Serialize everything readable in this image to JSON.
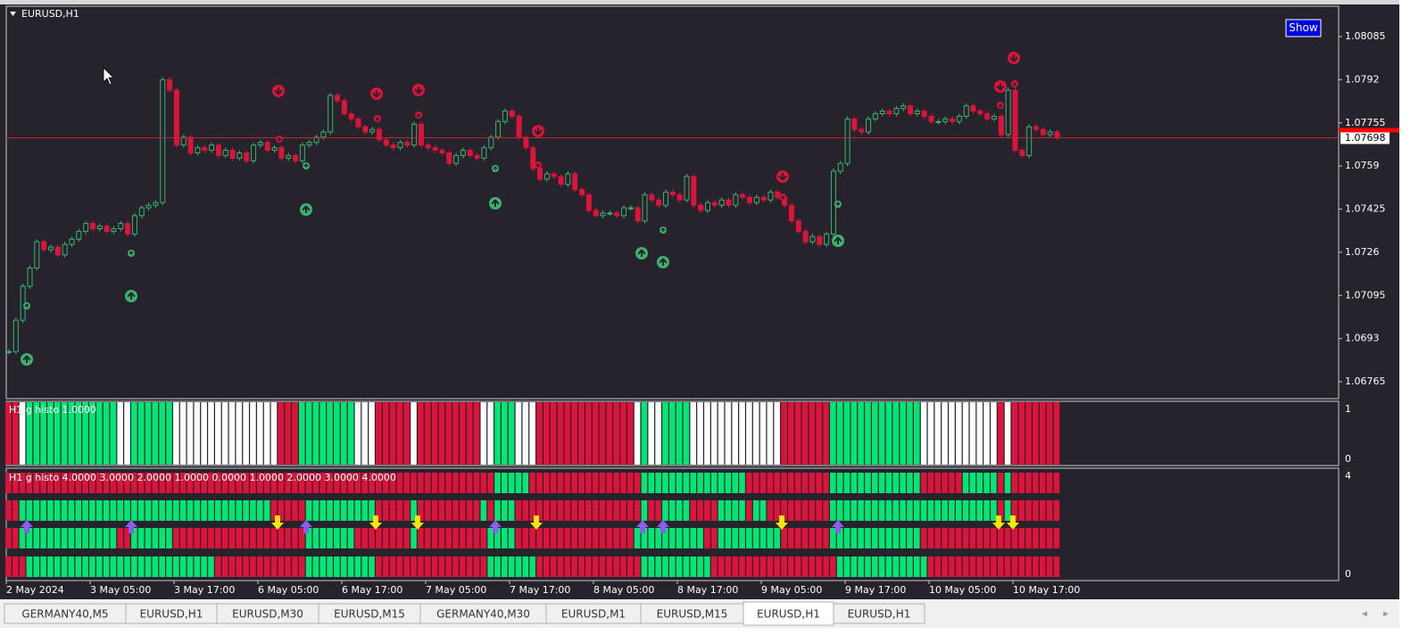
{
  "window": {
    "title": "EURUSD,H1",
    "show_button": "Show"
  },
  "price_axis": {
    "ticks": [
      1.08085,
      1.0792,
      1.07755,
      1.0759,
      1.07425,
      1.0726,
      1.07095,
      1.0693,
      1.06765
    ],
    "current_price": 1.07698
  },
  "candles": {
    "closes": [
      1.0688,
      1.07,
      1.0713,
      1.072,
      1.073,
      1.0727,
      1.0728,
      1.0725,
      1.0729,
      1.0731,
      1.0734,
      1.0737,
      1.0735,
      1.0736,
      1.0734,
      1.0735,
      1.0737,
      1.0733,
      1.074,
      1.0743,
      1.0744,
      1.0745,
      1.0792,
      1.0788,
      1.0767,
      1.077,
      1.0764,
      1.0766,
      1.0765,
      1.0767,
      1.0763,
      1.0765,
      1.0762,
      1.0764,
      1.0761,
      1.0767,
      1.0768,
      1.0765,
      1.0766,
      1.0762,
      1.0763,
      1.0761,
      1.0767,
      1.0768,
      1.077,
      1.0772,
      1.0786,
      1.0784,
      1.0779,
      1.0777,
      1.0774,
      1.0772,
      1.0773,
      1.0769,
      1.0767,
      1.0766,
      1.0768,
      1.0767,
      1.0775,
      1.0767,
      1.0766,
      1.0765,
      1.0764,
      1.076,
      1.0763,
      1.0765,
      1.0763,
      1.0762,
      1.0766,
      1.077,
      1.0776,
      1.078,
      1.0778,
      1.077,
      1.0766,
      1.0758,
      1.0754,
      1.0756,
      1.0755,
      1.0752,
      1.0756,
      1.075,
      1.0748,
      1.0742,
      1.074,
      1.0741,
      1.0741,
      1.074,
      1.0743,
      1.0743,
      1.0738,
      1.0748,
      1.0746,
      1.0744,
      1.0749,
      1.0748,
      1.0746,
      1.0755,
      1.0744,
      1.0742,
      1.0745,
      1.0744,
      1.0746,
      1.0744,
      1.0748,
      1.0747,
      1.0745,
      1.0747,
      1.0746,
      1.0749,
      1.0747,
      1.0744,
      1.0738,
      1.0734,
      1.073,
      1.0732,
      1.0729,
      1.0733,
      1.0757,
      1.076,
      1.0777,
      1.0773,
      1.0772,
      1.0777,
      1.0779,
      1.078,
      1.0779,
      1.0781,
      1.0782,
      1.0779,
      1.078,
      1.0778,
      1.0776,
      1.0776,
      1.0777,
      1.0776,
      1.0778,
      1.0782,
      1.078,
      1.0779,
      1.0777,
      1.0778,
      1.0771,
      1.0788,
      1.0765,
      1.0763,
      1.0774,
      1.0773,
      1.0771,
      1.0772,
      1.077
    ]
  },
  "palette": {
    "r": "#dc143c",
    "g": "#00e676",
    "w": "#ffffff"
  },
  "histo_top": {
    "label": "H1 g histo  1.0000",
    "axis": [
      1,
      0
    ],
    "runs": [
      [
        "r",
        2
      ],
      [
        "w",
        1
      ],
      [
        "g",
        13
      ],
      [
        "w",
        2
      ],
      [
        "g",
        6
      ],
      [
        "w",
        15
      ],
      [
        "r",
        3
      ],
      [
        "g",
        8
      ],
      [
        "w",
        3
      ],
      [
        "r",
        5
      ],
      [
        "w",
        1
      ],
      [
        "r",
        9
      ],
      [
        "w",
        2
      ],
      [
        "g",
        3
      ],
      [
        "w",
        3
      ],
      [
        "r",
        14
      ],
      [
        "w",
        1
      ],
      [
        "g",
        1
      ],
      [
        "w",
        2
      ],
      [
        "g",
        4
      ],
      [
        "w",
        13
      ],
      [
        "r",
        7
      ],
      [
        "g",
        13
      ],
      [
        "w",
        11
      ],
      [
        "r",
        1
      ],
      [
        "w",
        1
      ],
      [
        "r",
        7
      ]
    ]
  },
  "histo_rows": {
    "label": "H1 g histo  4.0000 3.0000 2.0000 1.0000 0.0000 1.0000 2.0000 3.0000 4.0000",
    "axis": [
      4,
      0
    ],
    "rows": [
      [
        [
          "r",
          70
        ],
        [
          "g",
          5
        ],
        [
          "r",
          16
        ],
        [
          "g",
          15
        ],
        [
          "r",
          12
        ],
        [
          "g",
          13
        ],
        [
          "r",
          6
        ],
        [
          "g",
          5
        ],
        [
          "r",
          1
        ],
        [
          "g",
          1
        ],
        [
          "r",
          7
        ]
      ],
      [
        [
          "r",
          2
        ],
        [
          "g",
          36
        ],
        [
          "r",
          5
        ],
        [
          "g",
          10
        ],
        [
          "r",
          5
        ],
        [
          "g",
          1
        ],
        [
          "r",
          9
        ],
        [
          "g",
          1
        ],
        [
          "r",
          1
        ],
        [
          "g",
          3
        ],
        [
          "r",
          18
        ],
        [
          "g",
          1
        ],
        [
          "r",
          2
        ],
        [
          "g",
          4
        ],
        [
          "r",
          4
        ],
        [
          "g",
          4
        ],
        [
          "r",
          1
        ],
        [
          "g",
          2
        ],
        [
          "r",
          9
        ],
        [
          "g",
          24
        ],
        [
          "r",
          1
        ],
        [
          "g",
          1
        ],
        [
          "r",
          7
        ]
      ],
      [
        [
          "r",
          2
        ],
        [
          "g",
          14
        ],
        [
          "r",
          2
        ],
        [
          "g",
          6
        ],
        [
          "r",
          19
        ],
        [
          "g",
          7
        ],
        [
          "r",
          8
        ],
        [
          "g",
          1
        ],
        [
          "r",
          10
        ],
        [
          "g",
          4
        ],
        [
          "r",
          17
        ],
        [
          "g",
          10
        ],
        [
          "r",
          2
        ],
        [
          "g",
          9
        ],
        [
          "r",
          7
        ],
        [
          "g",
          13
        ],
        [
          "r",
          20
        ]
      ],
      [
        [
          "r",
          3
        ],
        [
          "g",
          27
        ],
        [
          "r",
          13
        ],
        [
          "g",
          10
        ],
        [
          "r",
          16
        ],
        [
          "g",
          7
        ],
        [
          "r",
          15
        ],
        [
          "g",
          10
        ],
        [
          "r",
          18
        ],
        [
          "g",
          13
        ],
        [
          "r",
          19
        ]
      ]
    ]
  },
  "time_axis": [
    "2 May 2024",
    "3 May 05:00",
    "3 May 17:00",
    "6 May 05:00",
    "6 May 17:00",
    "7 May 05:00",
    "7 May 17:00",
    "8 May 05:00",
    "8 May 17:00",
    "9 May 05:00",
    "9 May 17:00",
    "10 May 05:00",
    "10 May 17:00"
  ],
  "tabs": [
    "GERMANY40,M5",
    "EURUSD,H1",
    "EURUSD,M30",
    "EURUSD,M15",
    "GERMANY40,M30",
    "EURUSD,M1",
    "EURUSD,M15",
    "EURUSD,H1",
    "EURUSD,H1"
  ],
  "active_tab": 7
}
